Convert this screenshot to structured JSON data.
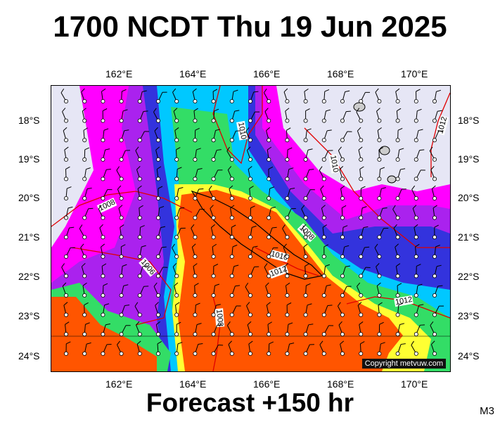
{
  "title": "1700 NCDT Thu 19 Jun 2025",
  "footer": "Forecast +150 hr",
  "model_code": "M3",
  "copyright": "Copyright metvuw.com",
  "lon_labels": [
    "162°E",
    "164°E",
    "166°E",
    "168°E",
    "170°E"
  ],
  "lat_labels": [
    "18°S",
    "19°S",
    "20°S",
    "21°S",
    "22°S",
    "23°S",
    "24°S"
  ],
  "isobar_labels": [
    "1010",
    "1010",
    "1012",
    "1008",
    "1008",
    "1010",
    "1012",
    "1006",
    "1008",
    "1012"
  ],
  "colors": {
    "light": "#e6e6f5",
    "magenta": "#ff00ff",
    "purple": "#aa22ee",
    "blue": "#3333dd",
    "cyan": "#00c8ff",
    "green": "#33dd66",
    "yellow": "#ffff33",
    "orange": "#ff5500",
    "isobar": "#e00000"
  },
  "chart_data": {
    "type": "heatmap",
    "x_range": [
      160.2,
      171
    ],
    "y_range": [
      -24.4,
      -17.1
    ],
    "lon_ticks": [
      162,
      164,
      166,
      168,
      170
    ],
    "lat_ticks": [
      -18,
      -19,
      -20,
      -21,
      -22,
      -23,
      -24
    ],
    "isobar_levels_hPa": [
      1006,
      1008,
      1010,
      1012
    ],
    "grid": true
  }
}
